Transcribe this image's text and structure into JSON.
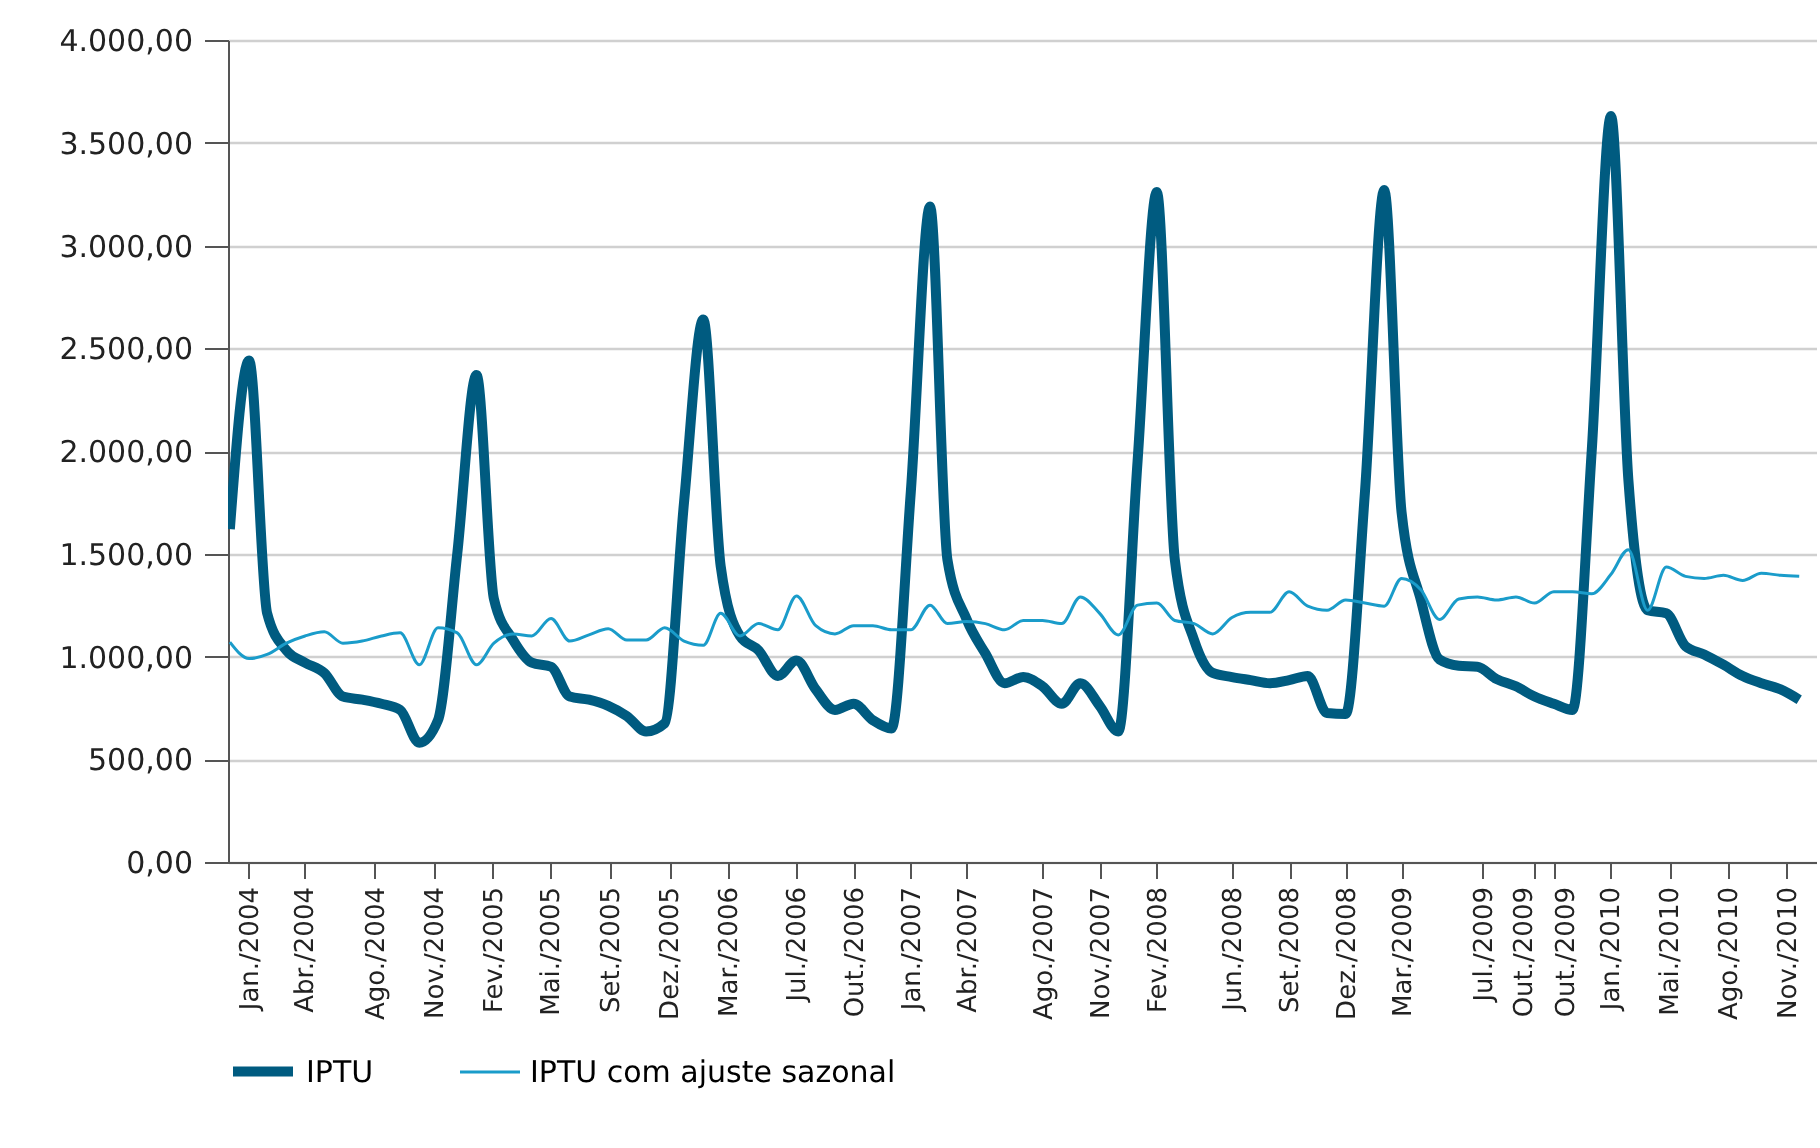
{
  "chart_data": {
    "type": "line",
    "x": [
      "2004-01",
      "2004-02",
      "2004-03",
      "2004-04",
      "2004-05",
      "2004-06",
      "2004-07",
      "2004-08",
      "2004-09",
      "2004-10",
      "2004-11",
      "2004-12",
      "2005-01",
      "2005-02",
      "2005-03",
      "2005-04",
      "2005-05",
      "2005-06",
      "2005-07",
      "2005-08",
      "2005-09",
      "2005-10",
      "2005-11",
      "2005-12",
      "2006-01",
      "2006-02",
      "2006-03",
      "2006-04",
      "2006-05",
      "2006-06",
      "2006-07",
      "2006-08",
      "2006-09",
      "2006-10",
      "2006-11",
      "2006-12",
      "2007-01",
      "2007-02",
      "2007-03",
      "2007-04",
      "2007-05",
      "2007-06",
      "2007-07",
      "2007-08",
      "2007-09",
      "2007-10",
      "2007-11",
      "2007-12",
      "2008-01",
      "2008-02",
      "2008-03",
      "2008-04",
      "2008-05",
      "2008-06",
      "2008-07",
      "2008-08",
      "2008-09",
      "2008-10",
      "2008-11",
      "2008-12",
      "2009-01",
      "2009-02",
      "2009-03",
      "2009-04",
      "2009-05",
      "2009-06",
      "2009-07",
      "2009-08",
      "2009-09",
      "2009-10",
      "2009-11",
      "2009-12",
      "2010-01",
      "2010-02",
      "2010-03",
      "2010-04",
      "2010-05",
      "2010-06",
      "2010-07",
      "2010-08",
      "2010-09",
      "2010-10",
      "2010-11",
      "2010-12"
    ],
    "series": [
      {
        "name": "IPTU",
        "color": "#005b80",
        "values": [
          1620,
          2440,
          1210,
          1030,
          970,
          920,
          805,
          790,
          770,
          740,
          580,
          690,
          1500,
          2370,
          1280,
          1080,
          970,
          950,
          805,
          790,
          760,
          710,
          635,
          675,
          1750,
          2640,
          1440,
          1100,
          1030,
          905,
          980,
          840,
          740,
          770,
          690,
          650,
          1800,
          3190,
          1470,
          1180,
          1015,
          870,
          900,
          855,
          770,
          870,
          760,
          635,
          1950,
          3260,
          1470,
          1080,
          920,
          900,
          885,
          870,
          885,
          905,
          725,
          720,
          1800,
          3270,
          1700,
          1275,
          985,
          955,
          950,
          890,
          855,
          805,
          770,
          740,
          2000,
          3630,
          1860,
          1225,
          1210,
          1050,
          1010,
          960,
          905,
          870,
          840,
          790
        ]
      },
      {
        "name": "IPTU com ajuste sazonal",
        "color": "#1a9cca",
        "values": [
          1070,
          990,
          1010,
          1065,
          1100,
          1120,
          1065,
          1075,
          1100,
          1115,
          960,
          1140,
          1115,
          960,
          1065,
          1110,
          1100,
          1185,
          1075,
          1105,
          1135,
          1080,
          1080,
          1140,
          1075,
          1055,
          1210,
          1100,
          1160,
          1130,
          1295,
          1150,
          1110,
          1150,
          1150,
          1130,
          1130,
          1250,
          1160,
          1170,
          1160,
          1130,
          1175,
          1175,
          1160,
          1290,
          1210,
          1105,
          1250,
          1260,
          1175,
          1160,
          1110,
          1190,
          1215,
          1215,
          1315,
          1245,
          1225,
          1275,
          1260,
          1245,
          1380,
          1325,
          1180,
          1280,
          1290,
          1275,
          1290,
          1260,
          1315,
          1315,
          1305,
          1400,
          1520,
          1225,
          1435,
          1390,
          1380,
          1395,
          1370,
          1405,
          1395,
          1390
        ]
      }
    ],
    "xlim": [
      "2003-12-29",
      "2010-12-28"
    ],
    "xticks": [
      {
        "value": "2004-01-31",
        "label": "Jan./2004"
      },
      {
        "value": "2004-04-30",
        "label": "Abr./2004"
      },
      {
        "value": "2004-08-21",
        "label": "Ago./2004"
      },
      {
        "value": "2004-11-24",
        "label": "Nov./2004"
      },
      {
        "value": "2005-02-27",
        "label": "Fev./2005"
      },
      {
        "value": "2005-05-31",
        "label": "Mai./2005"
      },
      {
        "value": "2005-09-04",
        "label": "Set./2005"
      },
      {
        "value": "2005-12-08",
        "label": "Dez./2005"
      },
      {
        "value": "2006-03-13",
        "label": "Mar./2006"
      },
      {
        "value": "2006-07-01",
        "label": "Jul./2006"
      },
      {
        "value": "2006-10-01",
        "label": "Out./2006"
      },
      {
        "value": "2007-01-01",
        "label": "Jan./2007"
      },
      {
        "value": "2007-04-01",
        "label": "Abr./2007"
      },
      {
        "value": "2007-08-01",
        "label": "Ago./2007"
      },
      {
        "value": "2007-11-01",
        "label": "Nov./2007"
      },
      {
        "value": "2008-02-01",
        "label": "Fev./2008"
      },
      {
        "value": "2008-06-01",
        "label": "Jun./2008"
      },
      {
        "value": "2008-09-01",
        "label": "Set./2008"
      },
      {
        "value": "2008-12-01",
        "label": "Dez./2008"
      },
      {
        "value": "2009-03-01",
        "label": "Mar./2009"
      },
      {
        "value": "2009-07-10",
        "label": "Jul./2009"
      },
      {
        "value": "2009-10-01",
        "label": "Out./2009"
      },
      {
        "value": "2009-10-31",
        "label": "Out./2009"
      },
      {
        "value": "2010-01-31",
        "label": "Jan./2010"
      },
      {
        "value": "2010-05-06",
        "label": "Mai./2010"
      },
      {
        "value": "2010-08-08",
        "label": "Ago./2010"
      },
      {
        "value": "2010-11-11",
        "label": "Nov./2010"
      }
    ],
    "ylim": [
      0,
      4000
    ],
    "yticks": [
      {
        "value": 0,
        "label": "0,00"
      },
      {
        "value": 500,
        "label": "500,00"
      },
      {
        "value": 1000,
        "label": "1.000,00"
      },
      {
        "value": 1500,
        "label": "1.500,00"
      },
      {
        "value": 2000,
        "label": "2.000,00"
      },
      {
        "value": 2500,
        "label": "2.500,00"
      },
      {
        "value": 3000,
        "label": "3.000,00"
      },
      {
        "value": 3500,
        "label": "3.500,00"
      },
      {
        "value": 4000,
        "label": "4.000,00"
      }
    ],
    "grid": "y",
    "legend": "bottom"
  }
}
